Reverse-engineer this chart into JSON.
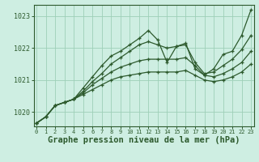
{
  "bg_color": "#ceeee2",
  "grid_color": "#9ecfb8",
  "line_color": "#2d5a2d",
  "xlabel": "Graphe pression niveau de la mer (hPa)",
  "xlabel_fontsize": 7.5,
  "ylabel_ticks": [
    1020,
    1021,
    1022,
    1023
  ],
  "xticks": [
    0,
    1,
    2,
    3,
    4,
    5,
    6,
    7,
    8,
    9,
    10,
    11,
    12,
    13,
    14,
    15,
    16,
    17,
    18,
    19,
    20,
    21,
    22,
    23
  ],
  "xlim": [
    -0.3,
    23.3
  ],
  "ylim": [
    1019.55,
    1023.35
  ],
  "series": [
    [
      1019.65,
      1019.85,
      1020.2,
      1020.3,
      1020.4,
      1020.75,
      1021.1,
      1021.45,
      1021.75,
      1021.9,
      1022.1,
      1022.3,
      1022.55,
      1022.25,
      1021.55,
      1022.05,
      1022.15,
      1021.35,
      1021.15,
      1021.35,
      1021.8,
      1021.9,
      1022.4,
      1023.2
    ],
    [
      1019.65,
      1019.85,
      1020.2,
      1020.3,
      1020.4,
      1020.65,
      1020.95,
      1021.2,
      1021.5,
      1021.7,
      1021.9,
      1022.1,
      1022.2,
      1022.1,
      1022.0,
      1022.05,
      1022.1,
      1021.55,
      1021.2,
      1021.25,
      1021.45,
      1021.65,
      1021.95,
      1022.4
    ],
    [
      1019.65,
      1019.85,
      1020.2,
      1020.3,
      1020.4,
      1020.6,
      1020.85,
      1021.05,
      1021.25,
      1021.4,
      1021.5,
      1021.6,
      1021.65,
      1021.65,
      1021.65,
      1021.65,
      1021.7,
      1021.45,
      1021.15,
      1021.1,
      1021.2,
      1021.35,
      1021.55,
      1021.9
    ],
    [
      1019.65,
      1019.85,
      1020.2,
      1020.3,
      1020.4,
      1020.55,
      1020.7,
      1020.85,
      1021.0,
      1021.1,
      1021.15,
      1021.2,
      1021.25,
      1021.25,
      1021.25,
      1021.25,
      1021.3,
      1021.15,
      1021.0,
      1020.95,
      1021.0,
      1021.1,
      1021.25,
      1021.5
    ]
  ]
}
